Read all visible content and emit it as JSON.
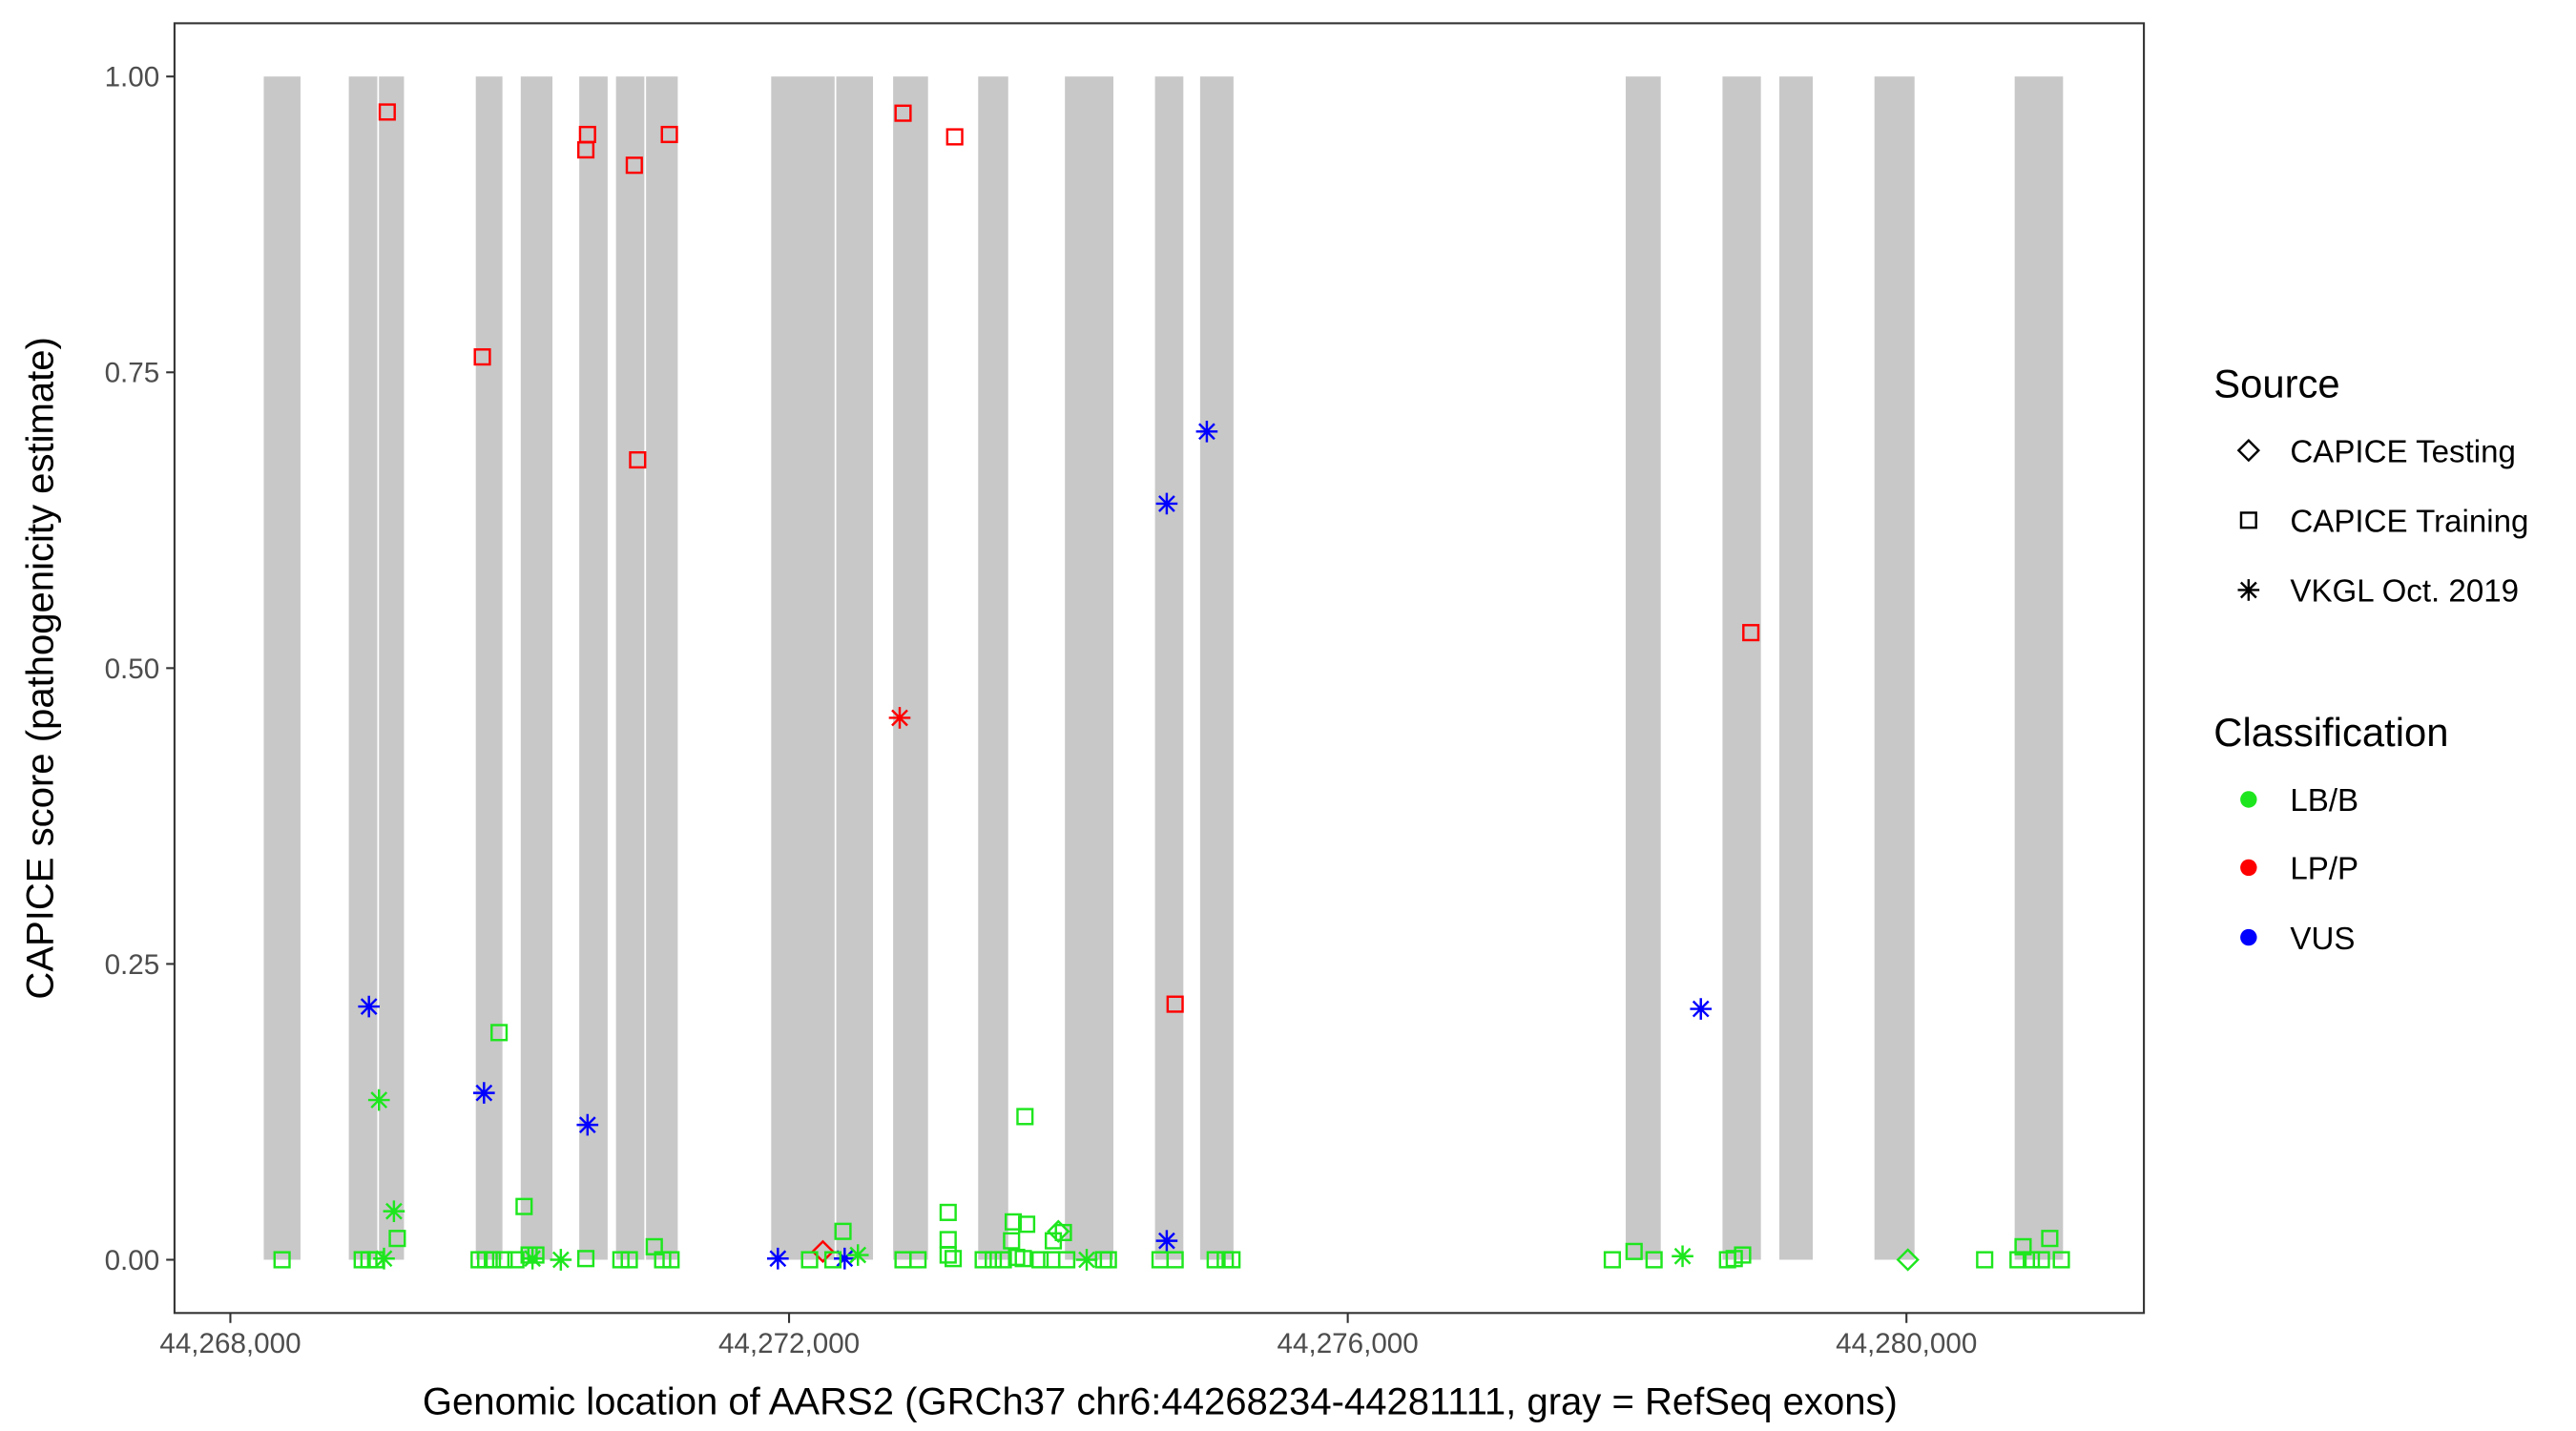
{
  "chart_data": {
    "type": "scatter",
    "xlabel": "Genomic location of AARS2 (GRCh37 chr6:44268234-44281111, gray = RefSeq exons)",
    "ylabel": "CAPICE score (pathogenicity estimate)",
    "xlim": [
      44267600,
      44281700
    ],
    "ylim": [
      -0.045,
      1.045
    ],
    "x_ticks": [
      44268000,
      44272000,
      44276000,
      44280000
    ],
    "x_tick_labels": [
      "44,268,000",
      "44,272,000",
      "44,276,000",
      "44,280,000"
    ],
    "y_ticks": [
      0,
      0.25,
      0.5,
      0.75,
      1
    ],
    "y_tick_labels": [
      "0.00",
      "0.25",
      "0.50",
      "0.75",
      "1.00"
    ],
    "grid": false,
    "exon_color": "#c8c8c8",
    "exons": [
      [
        44268239,
        44268502
      ],
      [
        44268848,
        44269052
      ],
      [
        44269064,
        44269243
      ],
      [
        44269757,
        44269948
      ],
      [
        44270079,
        44270306
      ],
      [
        44270498,
        44270701
      ],
      [
        44270761,
        44270964
      ],
      [
        44270976,
        44271203
      ],
      [
        44271872,
        44272326
      ],
      [
        44272338,
        44272601
      ],
      [
        44272745,
        44272995
      ],
      [
        44273354,
        44273569
      ],
      [
        44273975,
        44274322
      ],
      [
        44274620,
        44274823
      ],
      [
        44274943,
        44275182
      ],
      [
        44277990,
        44278241
      ],
      [
        44278683,
        44278958
      ],
      [
        44279090,
        44279329
      ],
      [
        44279771,
        44280058
      ],
      [
        44280775,
        44281121
      ]
    ],
    "legend": {
      "placement": "right",
      "source_title": "Source",
      "sources": [
        {
          "label": "CAPICE Testing",
          "shape": "diamond"
        },
        {
          "label": "CAPICE Training",
          "shape": "square"
        },
        {
          "label": "VKGL Oct. 2019",
          "shape": "asterisk"
        }
      ],
      "class_title": "Classification",
      "classes": [
        {
          "label": "LB/B",
          "color": "#1ee61e"
        },
        {
          "label": "LP/P",
          "color": "#ff0000"
        },
        {
          "label": "VUS",
          "color": "#0000ff"
        }
      ]
    },
    "series": [
      {
        "source": "CAPICE Training",
        "classification": "LP/P",
        "points": [
          [
            44269123,
            0.97
          ],
          [
            44270557,
            0.951
          ],
          [
            44270545,
            0.938
          ],
          [
            44270892,
            0.925
          ],
          [
            44271143,
            0.951
          ],
          [
            44269804,
            0.763
          ],
          [
            44270916,
            0.676
          ],
          [
            44272816,
            0.969
          ],
          [
            44273186,
            0.949
          ],
          [
            44274764,
            0.216
          ],
          [
            44278886,
            0.53
          ]
        ]
      },
      {
        "source": "VKGL Oct. 2019",
        "classification": "LP/P",
        "points": [
          [
            44272792,
            0.458
          ]
        ]
      },
      {
        "source": "CAPICE Testing",
        "classification": "LP/P",
        "points": [
          [
            44272242,
            0.007
          ]
        ]
      },
      {
        "source": "VKGL Oct. 2019",
        "classification": "VUS",
        "points": [
          [
            44268992,
            0.214
          ],
          [
            44269816,
            0.141
          ],
          [
            44270557,
            0.114
          ],
          [
            44274704,
            0.639
          ],
          [
            44274991,
            0.7
          ],
          [
            44274704,
            0.016
          ],
          [
            44271920,
            0.001
          ],
          [
            44272398,
            0.001
          ],
          [
            44278528,
            0.212
          ]
        ]
      },
      {
        "source": "VKGL Oct. 2019",
        "classification": "LB/B",
        "points": [
          [
            44269064,
            0.135
          ],
          [
            44269171,
            0.041
          ],
          [
            44269100,
            0.001
          ],
          [
            44270163,
            0.001
          ],
          [
            44270366,
            0.0
          ],
          [
            44272493,
            0.004
          ],
          [
            44274131,
            0.0
          ],
          [
            44278397,
            0.003
          ]
        ]
      },
      {
        "source": "CAPICE Testing",
        "classification": "LB/B",
        "points": [
          [
            44273928,
            0.024
          ],
          [
            44280010,
            0.0
          ]
        ]
      },
      {
        "source": "CAPICE Training",
        "classification": "LB/B",
        "points": [
          [
            44268370,
            0
          ],
          [
            44268944,
            0
          ],
          [
            44268992,
            0
          ],
          [
            44269040,
            0
          ],
          [
            44269195,
            0.018
          ],
          [
            44269781,
            0
          ],
          [
            44269828,
            0
          ],
          [
            44269876,
            0
          ],
          [
            44269960,
            0
          ],
          [
            44270044,
            0
          ],
          [
            44269924,
            0.192
          ],
          [
            44270103,
            0.045
          ],
          [
            44270139,
            0.004
          ],
          [
            44270187,
            0.004
          ],
          [
            44270545,
            0.001
          ],
          [
            44270796,
            0
          ],
          [
            44270856,
            0
          ],
          [
            44271035,
            0.011
          ],
          [
            44271095,
            0
          ],
          [
            44271155,
            0
          ],
          [
            44272147,
            0
          ],
          [
            44272314,
            0
          ],
          [
            44272386,
            0.024
          ],
          [
            44272816,
            0
          ],
          [
            44272923,
            0
          ],
          [
            44273139,
            0.04
          ],
          [
            44273139,
            0.017
          ],
          [
            44273139,
            0.004
          ],
          [
            44273175,
            0.001
          ],
          [
            44273390,
            0
          ],
          [
            44273462,
            0
          ],
          [
            44273534,
            0
          ],
          [
            44273605,
            0.032
          ],
          [
            44273701,
            0.03
          ],
          [
            44273689,
            0.121
          ],
          [
            44273593,
            0.016
          ],
          [
            44273629,
            0.002
          ],
          [
            44273677,
            0.001
          ],
          [
            44273797,
            0
          ],
          [
            44273880,
            0
          ],
          [
            44273892,
            0.016
          ],
          [
            44273964,
            0.023
          ],
          [
            44273988,
            0
          ],
          [
            44274251,
            0
          ],
          [
            44274286,
            0
          ],
          [
            44274656,
            0
          ],
          [
            44274764,
            0
          ],
          [
            44275051,
            0
          ],
          [
            44275123,
            0
          ],
          [
            44275171,
            0
          ],
          [
            44277894,
            0
          ],
          [
            44278050,
            0.007
          ],
          [
            44278193,
            0
          ],
          [
            44278719,
            0
          ],
          [
            44278767,
            0.001
          ],
          [
            44278827,
            0.004
          ],
          [
            44280560,
            0
          ],
          [
            44280799,
            0
          ],
          [
            44280835,
            0.011
          ],
          [
            44280894,
            0
          ],
          [
            44280966,
            0
          ],
          [
            44281026,
            0.018
          ],
          [
            44281109,
            0
          ]
        ]
      }
    ]
  }
}
